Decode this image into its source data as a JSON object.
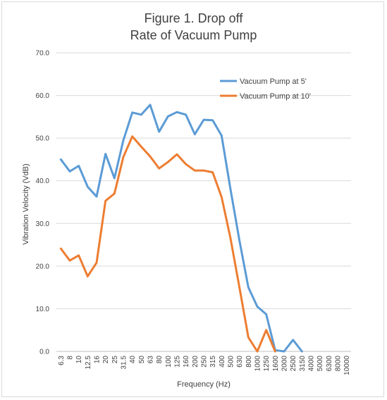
{
  "chart_data": {
    "type": "line",
    "title_lines": [
      "Figure 1. Drop off",
      "Rate of Vacuum Pump"
    ],
    "xlabel": "Frequency (Hz)",
    "ylabel": "Vibration Velocity (VdB)",
    "ylim": [
      0,
      70
    ],
    "y_ticks": [
      "0.0",
      "10.0",
      "20.0",
      "30.0",
      "40.0",
      "50.0",
      "60.0",
      "70.0"
    ],
    "grid": true,
    "legend_position": "top-right",
    "categories": [
      "6.3",
      "8",
      "10",
      "12.5",
      "16",
      "20",
      "25",
      "31.5",
      "40",
      "50",
      "63",
      "80",
      "100",
      "125",
      "160",
      "200",
      "250",
      "315",
      "400",
      "500",
      "630",
      "800",
      "1000",
      "1250",
      "1600",
      "2000",
      "2500",
      "3150",
      "4000",
      "5000",
      "6300",
      "8000",
      "10000"
    ],
    "series": [
      {
        "name": "Vacuum Pump at 5'",
        "color": "#5b9bd5",
        "values": [
          45.0,
          42.2,
          43.5,
          38.6,
          36.3,
          46.3,
          40.6,
          49.5,
          56.0,
          55.5,
          57.8,
          51.5,
          55.1,
          56.1,
          55.5,
          50.9,
          54.3,
          54.2,
          50.6,
          38.0,
          26.0,
          15.0,
          10.5,
          8.7,
          0.3,
          0.0,
          2.7,
          0.0,
          null,
          null,
          null,
          null,
          null
        ]
      },
      {
        "name": "Vacuum Pump at 10'",
        "color": "#ed7d31",
        "values": [
          24.1,
          21.3,
          22.5,
          17.6,
          20.8,
          35.3,
          37.0,
          45.6,
          50.4,
          48.0,
          45.7,
          42.9,
          44.4,
          46.2,
          43.9,
          42.4,
          42.4,
          42.0,
          36.2,
          26.5,
          15.0,
          3.3,
          0.0,
          5.0,
          0.0,
          null,
          null,
          null,
          null,
          null,
          null,
          null,
          null
        ]
      }
    ]
  }
}
